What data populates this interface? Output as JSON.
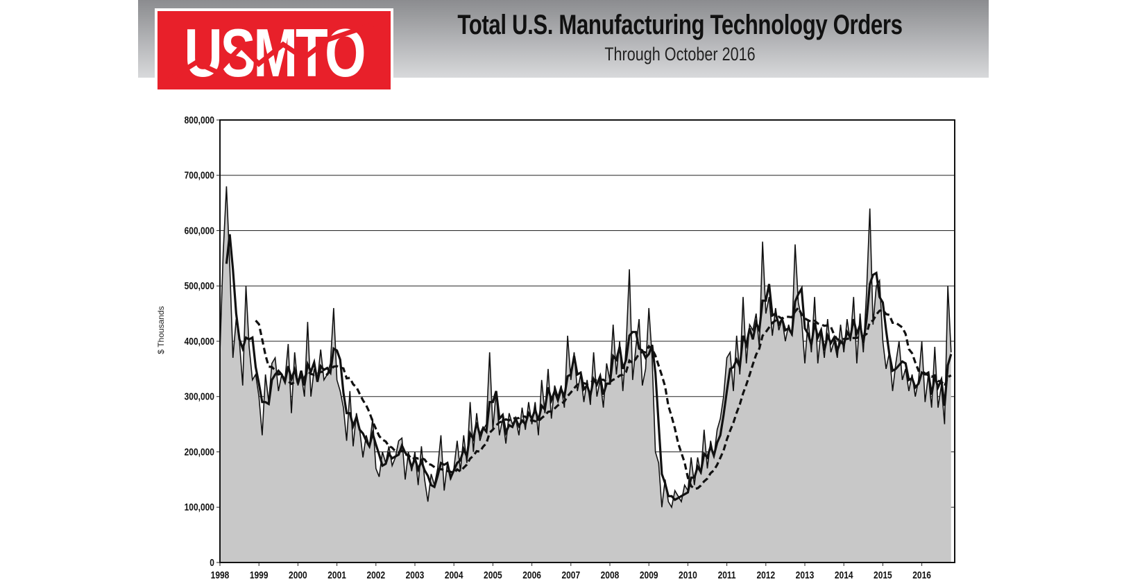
{
  "header": {
    "logo_text": "USMTO",
    "title": "Total U.S. Manufacturing Technology Orders",
    "subtitle": "Through October 2016"
  },
  "colors": {
    "logo_red": "#e8202a",
    "fill": "#c8c8c8",
    "line": "#111111"
  },
  "chart_data": {
    "type": "area",
    "title": "Total U.S. Manufacturing Technology Orders",
    "subtitle": "Through October 2016",
    "xlabel": "",
    "ylabel": "$ Thousands",
    "ylim": [
      0,
      800000
    ],
    "yticks": [
      "0",
      "100,000",
      "200,000",
      "300,000",
      "400,000",
      "500,000",
      "600,000",
      "700,000",
      "800,000"
    ],
    "xticks": [
      "1998",
      "1999",
      "2000",
      "2001",
      "2002",
      "2003",
      "2004",
      "2005",
      "2006",
      "2007",
      "2008",
      "2009",
      "2010",
      "2011",
      "2012",
      "2013",
      "2014",
      "2015",
      "2016"
    ],
    "grid": true,
    "start": "1998-01",
    "end": "2016-10",
    "frequency": "monthly",
    "units": "$ Thousands",
    "monthly_values": [
      380,
      560,
      680,
      540,
      370,
      440,
      400,
      320,
      500,
      390,
      330,
      340,
      300,
      230,
      340,
      290,
      360,
      370,
      310,
      340,
      330,
      395,
      270,
      380,
      320,
      340,
      300,
      435,
      300,
      350,
      330,
      385,
      330,
      340,
      360,
      460,
      330,
      310,
      280,
      220,
      310,
      210,
      270,
      240,
      190,
      230,
      210,
      260,
      170,
      155,
      200,
      180,
      210,
      175,
      190,
      220,
      225,
      150,
      200,
      165,
      200,
      140,
      210,
      150,
      110,
      160,
      140,
      170,
      230,
      130,
      180,
      150,
      170,
      220,
      165,
      230,
      180,
      290,
      200,
      270,
      220,
      240,
      250,
      380,
      240,
      310,
      230,
      260,
      215,
      270,
      250,
      260,
      230,
      280,
      240,
      290,
      250,
      290,
      230,
      330,
      270,
      350,
      260,
      320,
      300,
      320,
      280,
      410,
      330,
      380,
      310,
      340,
      290,
      330,
      285,
      380,
      300,
      330,
      280,
      360,
      330,
      430,
      340,
      400,
      310,
      390,
      530,
      330,
      390,
      440,
      320,
      350,
      460,
      370,
      200,
      180,
      100,
      150,
      110,
      100,
      130,
      120,
      110,
      140,
      130,
      190,
      140,
      190,
      160,
      240,
      170,
      220,
      190,
      240,
      260,
      300,
      370,
      380,
      310,
      410,
      340,
      480,
      360,
      430,
      420,
      450,
      390,
      580,
      450,
      480,
      410,
      460,
      420,
      440,
      400,
      430,
      410,
      575,
      470,
      440,
      360,
      440,
      380,
      480,
      360,
      420,
      370,
      440,
      380,
      400,
      370,
      430,
      380,
      440,
      400,
      480,
      360,
      450,
      380,
      490,
      640,
      430,
      500,
      510,
      400,
      350,
      380,
      310,
      360,
      400,
      330,
      350,
      310,
      340,
      300,
      330,
      400,
      290,
      340,
      280,
      390,
      280,
      320,
      250,
      500,
      380
    ],
    "series": [
      {
        "style": "thin solid line with gray area fill",
        "smoothing": "monthly"
      },
      {
        "style": "thick solid line",
        "smoothing": "3-month moving average"
      },
      {
        "style": "thick dashed line",
        "smoothing": "12-month moving average"
      }
    ],
    "legend": "none"
  }
}
